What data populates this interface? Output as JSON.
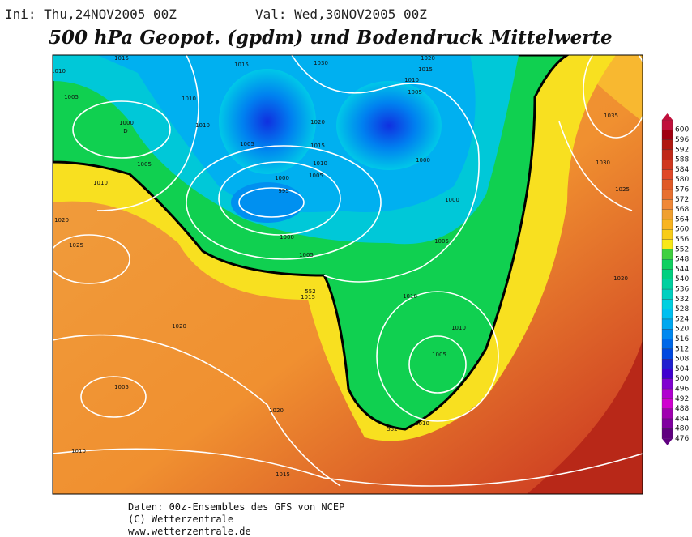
{
  "header": {
    "init": "Ini: Thu,24NOV2005 00Z",
    "valid": "Val: Wed,30NOV2005 00Z",
    "title": "500 hPa Geopot. (gpdm) und Bodendruck Mittelwerte"
  },
  "map": {
    "contour_labels": [
      "1015",
      "1010",
      "1005",
      "1000",
      "D",
      "1010",
      "1010",
      "1015",
      "1030",
      "1020",
      "1015",
      "1010",
      "1005",
      "1020",
      "1015",
      "1005",
      "1010",
      "1005",
      "1000",
      "995",
      "1000",
      "1000",
      "1005",
      "1005",
      "1010",
      "1020",
      "1025",
      "1000",
      "1005",
      "1015",
      "1010",
      "1010",
      "1005",
      "1020",
      "1005",
      "1020",
      "1010",
      "1010",
      "1015",
      "1035",
      "1030",
      "1025",
      "1020",
      "552",
      "552"
    ]
  },
  "colorbar": {
    "levels": [
      600,
      596,
      592,
      588,
      584,
      580,
      576,
      572,
      568,
      564,
      560,
      556,
      552,
      548,
      544,
      540,
      536,
      532,
      528,
      524,
      520,
      516,
      512,
      508,
      504,
      500,
      496,
      492,
      488,
      484,
      480,
      476
    ],
    "colors": [
      "#c0103c",
      "#a00010",
      "#b01810",
      "#c02818",
      "#d03820",
      "#e04828",
      "#e05a28",
      "#e87030",
      "#f08838",
      "#f0a030",
      "#f8b420",
      "#f8cc18",
      "#f8e818",
      "#40d040",
      "#10d060",
      "#00d080",
      "#00d0a0",
      "#00d0c0",
      "#00d0e0",
      "#00c0f0",
      "#00a8f0",
      "#0088f0",
      "#0068e8",
      "#0048e0",
      "#2020d0",
      "#4000d0",
      "#8000d0",
      "#b000d0",
      "#d000d0",
      "#a000b0",
      "#8000a0",
      "#600080"
    ]
  },
  "footer": {
    "line1": "Daten: 00z-Ensembles des GFS von NCEP",
    "line2": "(C) Wetterzentrale",
    "line3": "www.wetterzentrale.de"
  }
}
